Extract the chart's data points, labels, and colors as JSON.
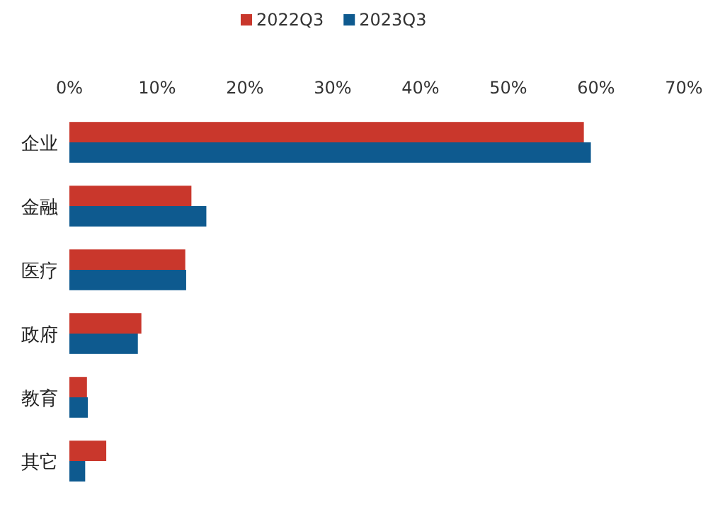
{
  "chart_data": {
    "type": "bar",
    "orientation": "horizontal",
    "categories": [
      "企业",
      "金融",
      "医疗",
      "政府",
      "教育",
      "其它"
    ],
    "series": [
      {
        "name": "2022Q3",
        "color": "#c9372c",
        "values": [
          58.6,
          13.9,
          13.2,
          8.2,
          2.0,
          4.2
        ]
      },
      {
        "name": "2023Q3",
        "color": "#0e5a8f",
        "values": [
          59.4,
          15.6,
          13.3,
          7.8,
          2.1,
          1.8
        ]
      }
    ],
    "xlim": [
      0,
      70
    ],
    "xticks": [
      {
        "value": 0,
        "label": "0%"
      },
      {
        "value": 10,
        "label": "10%"
      },
      {
        "value": 20,
        "label": "20%"
      },
      {
        "value": 30,
        "label": "30%"
      },
      {
        "value": 40,
        "label": "40%"
      },
      {
        "value": 50,
        "label": "50%"
      },
      {
        "value": 60,
        "label": "60%"
      },
      {
        "value": 70,
        "label": "70%"
      }
    ],
    "legend": "top",
    "grid": false
  }
}
